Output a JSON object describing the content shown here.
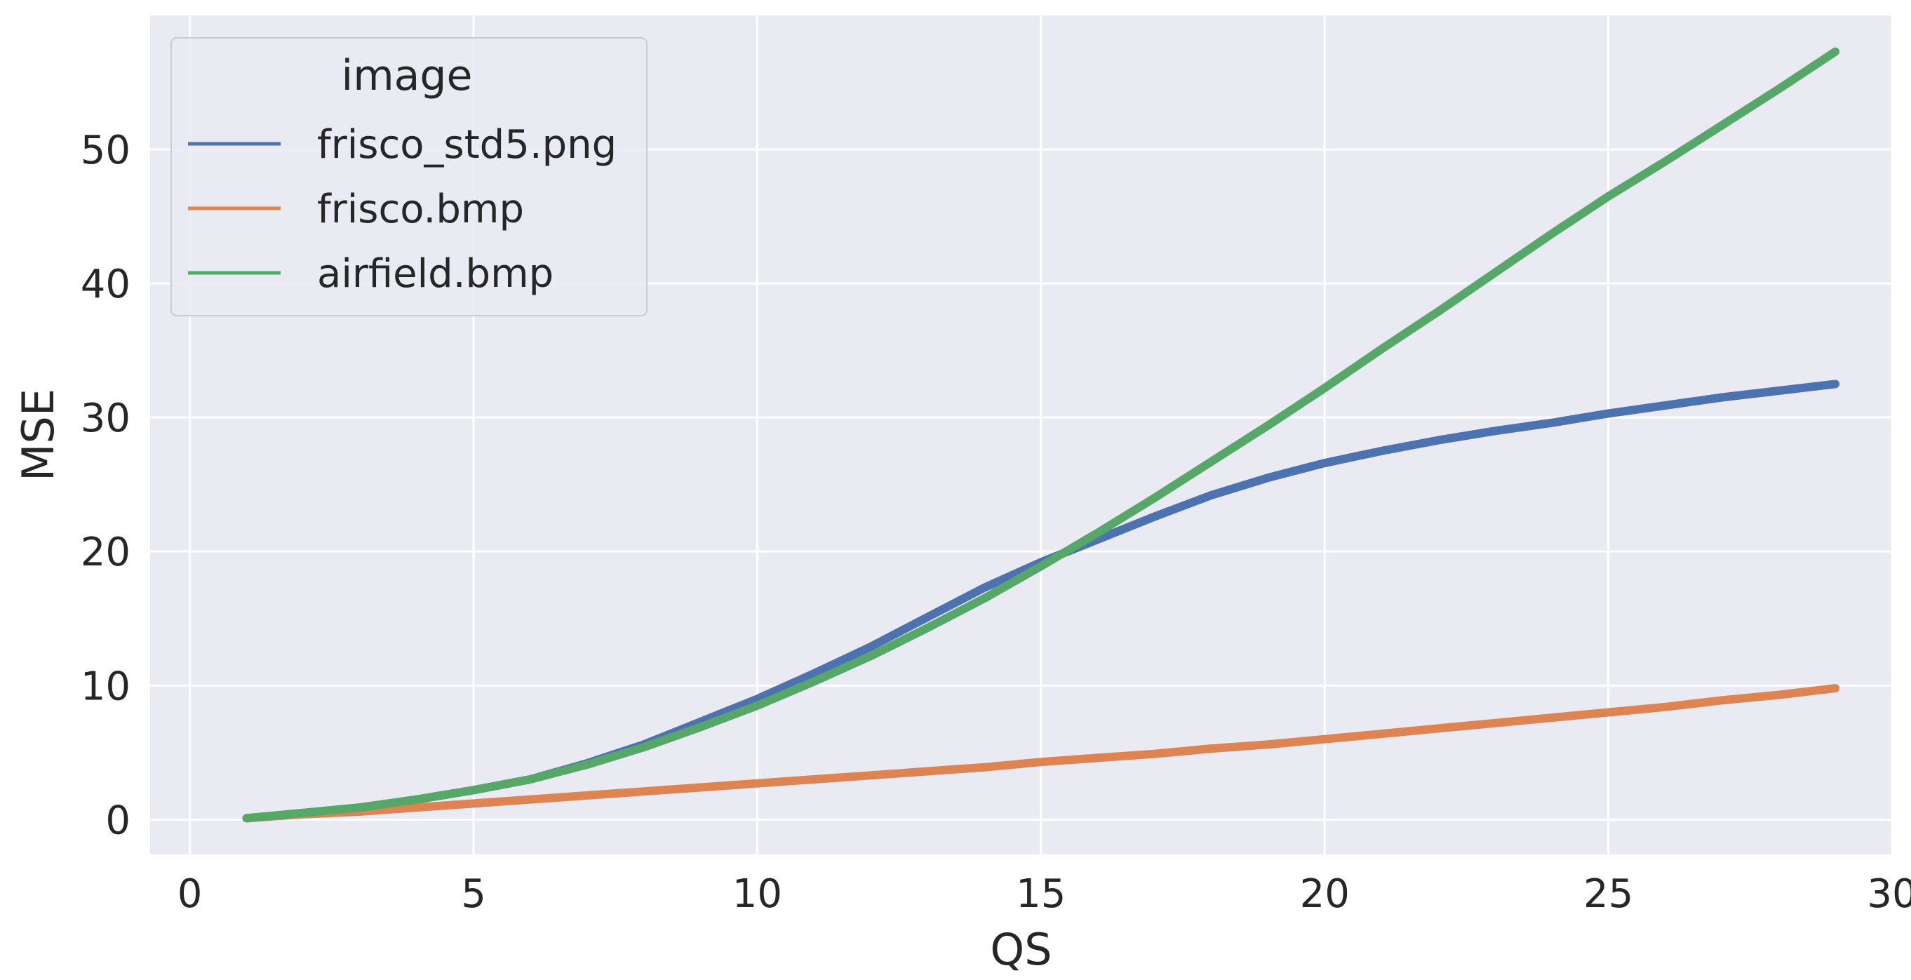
{
  "chart_data": {
    "type": "line",
    "xlabel": "QS",
    "ylabel": "MSE",
    "xlim": [
      -0.7,
      30.0
    ],
    "ylim": [
      -2.6,
      60.0
    ],
    "xticks": [
      0,
      5,
      10,
      15,
      20,
      25,
      30
    ],
    "yticks": [
      0,
      10,
      20,
      30,
      40,
      50
    ],
    "grid": true,
    "legend": {
      "title": "image",
      "placement": "top-left"
    },
    "x": [
      1,
      2,
      3,
      4,
      5,
      6,
      7,
      8,
      9,
      10,
      11,
      12,
      13,
      14,
      15,
      16,
      17,
      18,
      19,
      20,
      21,
      22,
      23,
      24,
      25,
      26,
      27,
      28,
      29
    ],
    "series": [
      {
        "name": "frisco_std5.png",
        "color": "#4c72b0",
        "values": [
          0.1,
          0.5,
          0.9,
          1.5,
          2.2,
          3.0,
          4.2,
          5.6,
          7.3,
          9.0,
          10.9,
          12.9,
          15.1,
          17.3,
          19.2,
          20.9,
          22.6,
          24.2,
          25.5,
          26.6,
          27.5,
          28.3,
          29.0,
          29.6,
          30.3,
          30.9,
          31.5,
          32.0,
          32.5
        ]
      },
      {
        "name": "frisco.bmp",
        "color": "#dd8452",
        "values": [
          0.1,
          0.4,
          0.6,
          0.9,
          1.2,
          1.5,
          1.8,
          2.1,
          2.4,
          2.7,
          3.0,
          3.3,
          3.6,
          3.9,
          4.3,
          4.6,
          4.9,
          5.3,
          5.6,
          6.0,
          6.4,
          6.8,
          7.2,
          7.6,
          8.0,
          8.4,
          8.9,
          9.3,
          9.8
        ]
      },
      {
        "name": "airfield.bmp",
        "color": "#55a868",
        "values": [
          0.1,
          0.5,
          0.9,
          1.5,
          2.2,
          3.0,
          4.1,
          5.4,
          6.9,
          8.5,
          10.3,
          12.2,
          14.3,
          16.5,
          18.9,
          21.4,
          24.0,
          26.7,
          29.4,
          32.2,
          35.1,
          37.9,
          40.8,
          43.7,
          46.5,
          49.1,
          51.8,
          54.5,
          57.3
        ]
      }
    ]
  }
}
